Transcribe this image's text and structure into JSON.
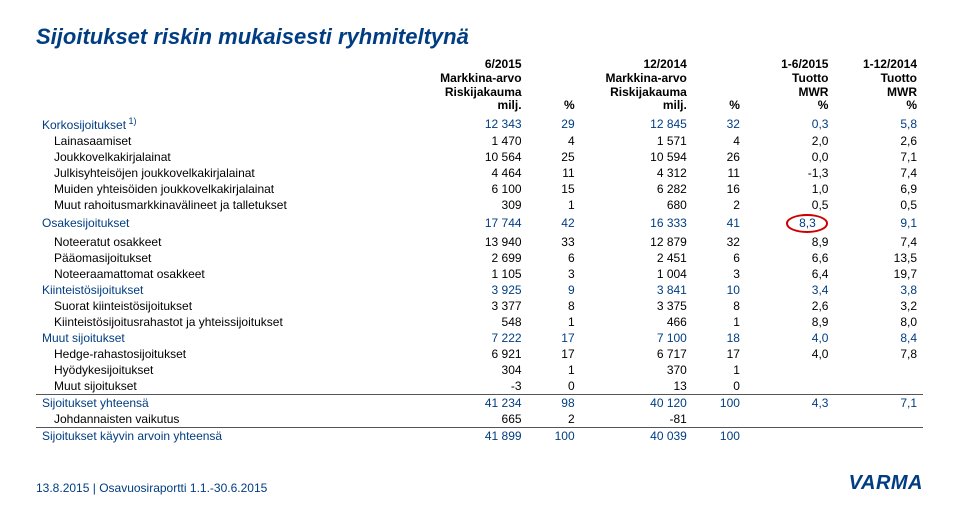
{
  "title": "Sijoitukset riskin mukaisesti ryhmiteltynä",
  "headers": {
    "col1a": "6/2015",
    "col1b": "Markkina-arvo",
    "col1c": "Riskijakauma",
    "col1d": "milj.",
    "col2": "%",
    "col3a": "12/2014",
    "col3b": "Markkina-arvo",
    "col3c": "Riskijakauma",
    "col3d": "milj.",
    "col4": "%",
    "col5a": "1-6/2015",
    "col5b": "Tuotto",
    "col5c": "MWR",
    "col5d": "%",
    "col6a": "1-12/2014",
    "col6b": "Tuotto",
    "col6c": "MWR",
    "col6d": "%"
  },
  "rows": [
    {
      "label": "Korkosijoitukset",
      "sup": "1)",
      "blue": true,
      "indent": 0,
      "v": [
        "12 343",
        "29",
        "12 845",
        "32",
        "0,3",
        "5,8"
      ]
    },
    {
      "label": "Lainasaamiset",
      "indent": 1,
      "v": [
        "1 470",
        "4",
        "1 571",
        "4",
        "2,0",
        "2,6"
      ]
    },
    {
      "label": "Joukkovelkakirjalainat",
      "indent": 1,
      "v": [
        "10 564",
        "25",
        "10 594",
        "26",
        "0,0",
        "7,1"
      ]
    },
    {
      "label": "Julkisyhteisöjen joukkovelkakirjalainat",
      "indent": 1,
      "v": [
        "4 464",
        "11",
        "4 312",
        "11",
        "-1,3",
        "7,4"
      ]
    },
    {
      "label": "Muiden yhteisöiden joukkovelkakirjalainat",
      "indent": 1,
      "v": [
        "6 100",
        "15",
        "6 282",
        "16",
        "1,0",
        "6,9"
      ]
    },
    {
      "label": "Muut rahoitusmarkkinavälineet ja talletukset",
      "indent": 1,
      "v": [
        "309",
        "1",
        "680",
        "2",
        "0,5",
        "0,5"
      ]
    },
    {
      "label": "Osakesijoitukset",
      "blue": true,
      "indent": 0,
      "v": [
        "17 744",
        "42",
        "16 333",
        "41",
        "8,3",
        "9,1"
      ],
      "circle": 4
    },
    {
      "label": "Noteeratut osakkeet",
      "indent": 1,
      "v": [
        "13 940",
        "33",
        "12 879",
        "32",
        "8,9",
        "7,4"
      ]
    },
    {
      "label": "Pääomasijoitukset",
      "indent": 1,
      "v": [
        "2 699",
        "6",
        "2 451",
        "6",
        "6,6",
        "13,5"
      ]
    },
    {
      "label": "Noteeraamattomat osakkeet",
      "indent": 1,
      "v": [
        "1 105",
        "3",
        "1 004",
        "3",
        "6,4",
        "19,7"
      ]
    },
    {
      "label": "Kiinteistösijoitukset",
      "blue": true,
      "indent": 0,
      "v": [
        "3 925",
        "9",
        "3 841",
        "10",
        "3,4",
        "3,8"
      ]
    },
    {
      "label": "Suorat kiinteistösijoitukset",
      "indent": 1,
      "v": [
        "3 377",
        "8",
        "3 375",
        "8",
        "2,6",
        "3,2"
      ]
    },
    {
      "label": "Kiinteistösijoitusrahastot ja yhteissijoitukset",
      "indent": 1,
      "v": [
        "548",
        "1",
        "466",
        "1",
        "8,9",
        "8,0"
      ]
    },
    {
      "label": "Muut sijoitukset",
      "blue": true,
      "indent": 0,
      "v": [
        "7 222",
        "17",
        "7 100",
        "18",
        "4,0",
        "8,4"
      ]
    },
    {
      "label": "Hedge-rahastosijoitukset",
      "indent": 1,
      "v": [
        "6 921",
        "17",
        "6 717",
        "17",
        "4,0",
        "7,8"
      ]
    },
    {
      "label": "Hyödykesijoitukset",
      "indent": 1,
      "v": [
        "304",
        "1",
        "370",
        "1",
        "",
        ""
      ]
    },
    {
      "label": "Muut sijoitukset",
      "indent": 1,
      "v": [
        "-3",
        "0",
        "13",
        "0",
        "",
        ""
      ]
    },
    {
      "label": "Sijoitukset yhteensä",
      "blue": true,
      "indent": 0,
      "hr": true,
      "v": [
        "41 234",
        "98",
        "40 120",
        "100",
        "4,3",
        "7,1"
      ]
    },
    {
      "label": "Johdannaisten vaikutus",
      "indent": 1,
      "v": [
        "665",
        "2",
        "-81",
        "",
        "",
        ""
      ]
    },
    {
      "label": "Sijoitukset käyvin arvoin yhteensä",
      "blue": true,
      "indent": 0,
      "hr": true,
      "v": [
        "41 899",
        "100",
        "40 039",
        "100",
        "",
        ""
      ]
    }
  ],
  "footer": {
    "date": "13.8.2015",
    "sep": " | ",
    "doc": "Osavuosiraportti 1.1.-30.6.2015",
    "logo": "VARMA"
  }
}
